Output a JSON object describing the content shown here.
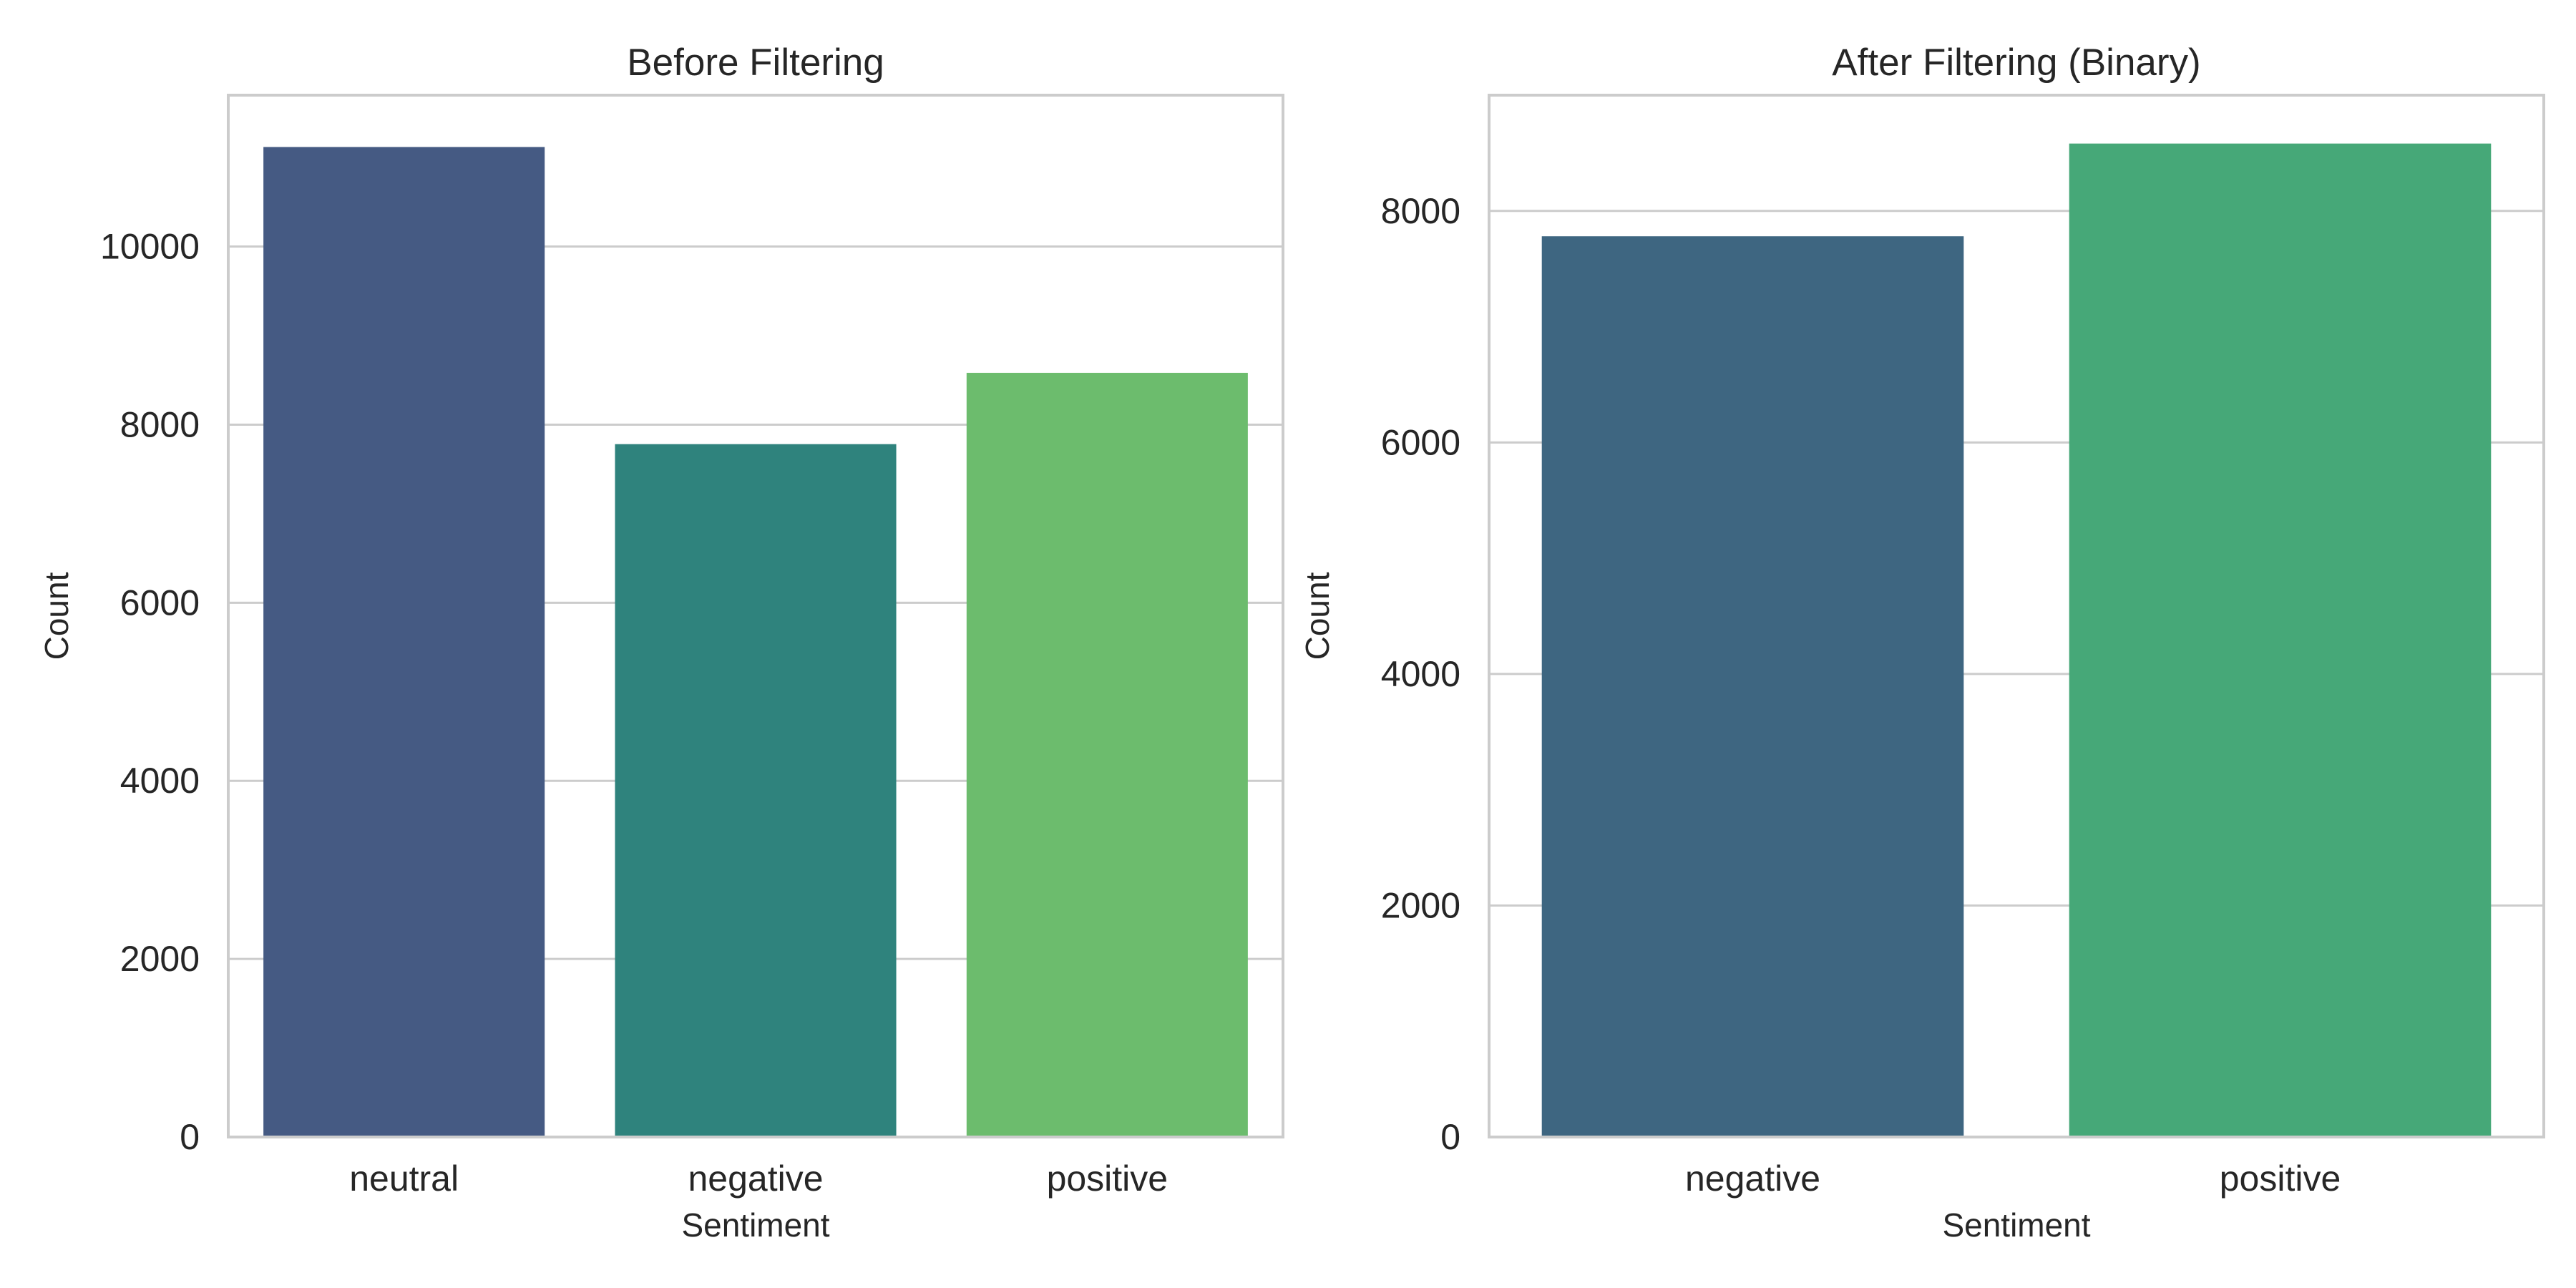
{
  "chart_data": [
    {
      "type": "bar",
      "title": "Before Filtering",
      "xlabel": "Sentiment",
      "ylabel": "Count",
      "categories": [
        "neutral",
        "negative",
        "positive"
      ],
      "values": [
        11118,
        7781,
        8582
      ],
      "colors": [
        "#455a83",
        "#2f837d",
        "#6cbc6d"
      ],
      "ylim": [
        0,
        11700
      ],
      "yticks": [
        0,
        2000,
        4000,
        6000,
        8000,
        10000
      ],
      "ytick_labels": [
        "0",
        "2000",
        "4000",
        "6000",
        "8000",
        "10000"
      ],
      "grid": true
    },
    {
      "type": "bar",
      "title": "After Filtering (Binary)",
      "xlabel": "Sentiment",
      "ylabel": "Count",
      "categories": [
        "negative",
        "positive"
      ],
      "values": [
        7781,
        8582
      ],
      "colors": [
        "#3e6681",
        "#46a878"
      ],
      "ylim": [
        0,
        9000
      ],
      "yticks": [
        0,
        2000,
        4000,
        6000,
        8000
      ],
      "ytick_labels": [
        "0",
        "2000",
        "4000",
        "6000",
        "8000"
      ],
      "grid": true
    }
  ]
}
